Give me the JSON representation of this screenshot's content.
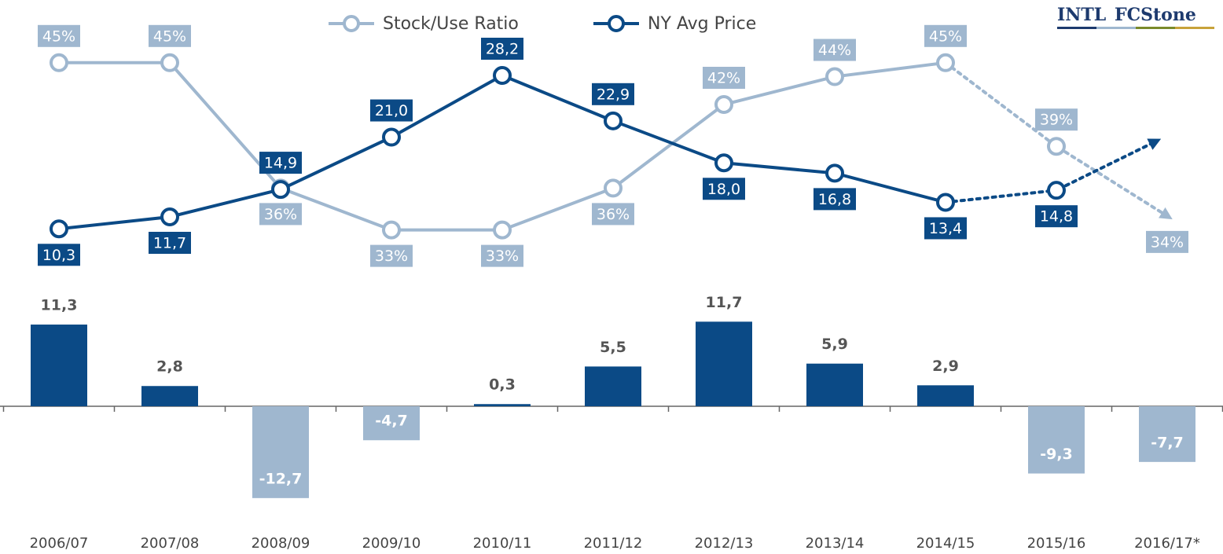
{
  "logo": {
    "left": "INTL",
    "right": "FCStone"
  },
  "chart_data": [
    {
      "type": "line",
      "categories": [
        "2006/07",
        "2007/08",
        "2008/09",
        "2009/10",
        "2010/11",
        "2011/12",
        "2012/13",
        "2013/14",
        "2014/15",
        "2015/16",
        "2016/17*"
      ],
      "series": [
        {
          "name": "Stock/Use Ratio",
          "color": "#9fb7cf",
          "axis": "y2",
          "values": [
            45,
            45,
            36,
            33,
            33,
            36,
            42,
            44,
            45,
            39,
            34
          ],
          "value_labels": [
            "45%",
            "45%",
            "36%",
            "33%",
            "33%",
            "36%",
            "42%",
            "44%",
            "45%",
            "39%",
            "34%"
          ]
        },
        {
          "name": "NY Avg Price",
          "color": "#0b4a86",
          "values": [
            10.3,
            11.7,
            14.9,
            21.0,
            28.2,
            22.9,
            18.0,
            16.8,
            13.4,
            14.8,
            null
          ],
          "value_labels": [
            "10,3",
            "11,7",
            "14,9",
            "21,0",
            "28,2",
            "22,9",
            "18,0",
            "16,8",
            "13,4",
            "14,8",
            null
          ]
        }
      ],
      "dashed_from_index": 8,
      "ylim": [
        4,
        37
      ],
      "y2lim": [
        29.2,
        49.5
      ],
      "legend": "top"
    },
    {
      "type": "bar",
      "categories": [
        "2006/07",
        "2007/08",
        "2008/09",
        "2009/10",
        "2010/11",
        "2011/12",
        "2012/13",
        "2013/14",
        "2014/15",
        "2015/16",
        "2016/17*"
      ],
      "values": [
        11.3,
        2.8,
        -12.7,
        -4.7,
        0.3,
        5.5,
        11.7,
        5.9,
        2.9,
        -9.3,
        -7.7
      ],
      "value_labels": [
        "11,3",
        "2,8",
        "-12,7",
        "-4,7",
        "0,3",
        "5,5",
        "11,7",
        "5,9",
        "2,9",
        "-9,3",
        "-7,7"
      ],
      "positive_color": "#0b4a86",
      "negative_color": "#9fb7cf",
      "ylim": [
        -15,
        15
      ]
    }
  ]
}
